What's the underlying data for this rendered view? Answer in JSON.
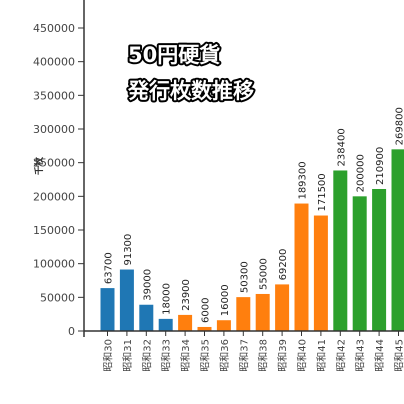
{
  "chart_data": {
    "type": "bar",
    "title": "50円硬貨",
    "subtitle": "発行枚数推移",
    "ylabel": "千枚",
    "xlabel": "",
    "ylim": [
      0,
      450000
    ],
    "yticks": [
      0,
      50000,
      100000,
      150000,
      200000,
      250000,
      300000,
      350000,
      400000,
      450000
    ],
    "grid": false,
    "categories": [
      "昭和30",
      "昭和31",
      "昭和32",
      "昭和33",
      "昭和34",
      "昭和35",
      "昭和36",
      "昭和37",
      "昭和38",
      "昭和39",
      "昭和40",
      "昭和41",
      "昭和42",
      "昭和43",
      "昭和44",
      "昭和45"
    ],
    "values": [
      63700,
      91300,
      39000,
      18000,
      23900,
      6000,
      16000,
      50300,
      55000,
      69200,
      189300,
      171500,
      238400,
      200000,
      210900,
      269800
    ],
    "bar_colors": [
      "#1f77b4",
      "#1f77b4",
      "#1f77b4",
      "#1f77b4",
      "#ff7f0e",
      "#ff7f0e",
      "#ff7f0e",
      "#ff7f0e",
      "#ff7f0e",
      "#ff7f0e",
      "#ff7f0e",
      "#ff7f0e",
      "#2ca02c",
      "#2ca02c",
      "#2ca02c",
      "#2ca02c"
    ]
  }
}
